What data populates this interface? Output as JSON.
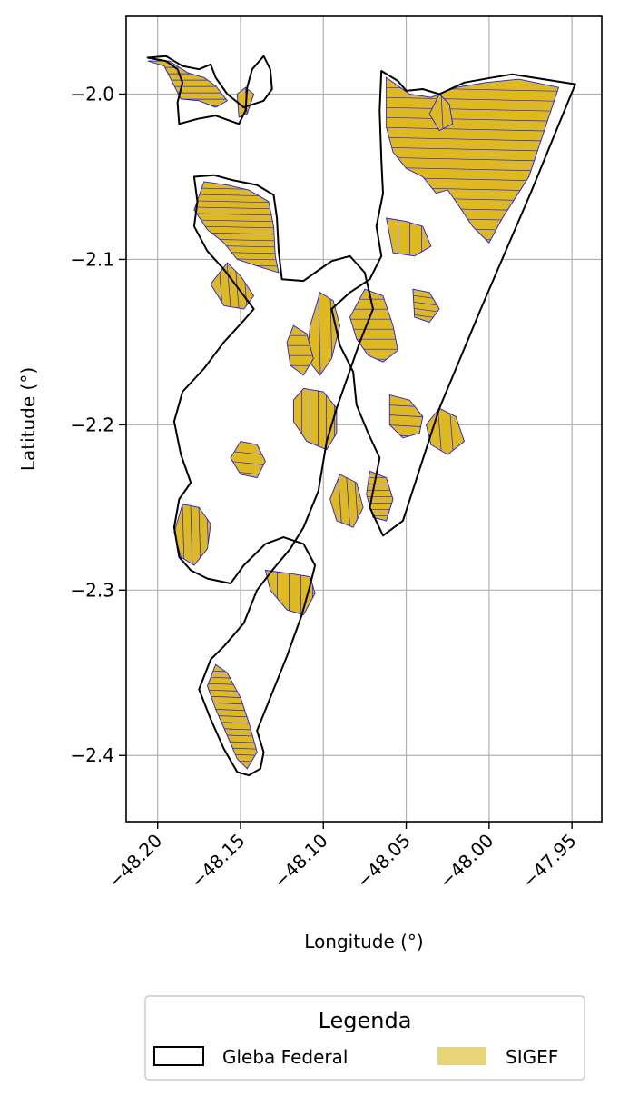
{
  "chart_data": {
    "type": "map",
    "title": "",
    "xlabel": "Longitude (°)",
    "ylabel": "Latitude (°)",
    "xlim": [
      -48.219,
      -47.932
    ],
    "ylim": [
      -2.44,
      -1.953
    ],
    "grid": true,
    "xticks": [
      -48.2,
      -48.15,
      -48.1,
      -48.05,
      -48.0,
      -47.95
    ],
    "xtick_labels": [
      "−48.20",
      "−48.15",
      "−48.10",
      "−48.05",
      "−48.00",
      "−47.95"
    ],
    "yticks": [
      -2.0,
      -2.1,
      -2.2,
      -2.3,
      -2.4
    ],
    "ytick_labels": [
      "−2.0",
      "−2.1",
      "−2.2",
      "−2.3",
      "−2.4"
    ],
    "legend": {
      "title": "Legenda",
      "placement": "bottom-center",
      "entries": [
        {
          "label": "Gleba Federal",
          "style": "outline",
          "edge_color": "#000000",
          "fill_color": "#ffffff"
        },
        {
          "label": "SIGEF",
          "style": "filled",
          "fill_color": "#e8d478"
        }
      ]
    },
    "colors": {
      "sigef_fill": "#dfb920",
      "sigef_edge": "#1a1aff",
      "gleba_edge": "#000000",
      "grid": "#b0b0b0"
    },
    "gleba_federal": [
      [
        [
          -48.206,
          -1.978
        ],
        [
          -48.195,
          -1.98
        ],
        [
          -48.188,
          -1.985
        ],
        [
          -48.185,
          -1.993
        ],
        [
          -48.188,
          -2.005
        ],
        [
          -48.187,
          -2.018
        ],
        [
          -48.176,
          -2.015
        ],
        [
          -48.165,
          -2.013
        ],
        [
          -48.151,
          -2.018
        ],
        [
          -48.147,
          -2.01
        ],
        [
          -48.146,
          -1.996
        ],
        [
          -48.143,
          -1.985
        ],
        [
          -48.136,
          -1.977
        ],
        [
          -48.132,
          -1.985
        ],
        [
          -48.131,
          -1.997
        ],
        [
          -48.136,
          -2.004
        ],
        [
          -48.148,
          -2.008
        ],
        [
          -48.158,
          -2.0
        ],
        [
          -48.165,
          -1.99
        ],
        [
          -48.168,
          -1.982
        ],
        [
          -48.175,
          -1.985
        ],
        [
          -48.185,
          -1.983
        ],
        [
          -48.195,
          -1.977
        ]
      ],
      [
        [
          -48.065,
          -1.986
        ],
        [
          -48.055,
          -1.992
        ],
        [
          -48.05,
          -1.998
        ],
        [
          -48.04,
          -1.997
        ],
        [
          -48.03,
          -2.0
        ],
        [
          -48.015,
          -1.993
        ],
        [
          -47.998,
          -1.99
        ],
        [
          -47.986,
          -1.988
        ],
        [
          -47.948,
          -1.994
        ],
        [
          -47.975,
          -2.06
        ],
        [
          -48.005,
          -2.13
        ],
        [
          -48.03,
          -2.19
        ],
        [
          -48.052,
          -2.258
        ],
        [
          -48.064,
          -2.267
        ],
        [
          -48.072,
          -2.25
        ],
        [
          -48.066,
          -2.22
        ],
        [
          -48.073,
          -2.205
        ],
        [
          -48.08,
          -2.188
        ],
        [
          -48.082,
          -2.168
        ],
        [
          -48.09,
          -2.152
        ],
        [
          -48.095,
          -2.13
        ],
        [
          -48.084,
          -2.12
        ],
        [
          -48.072,
          -2.112
        ],
        [
          -48.065,
          -2.098
        ],
        [
          -48.068,
          -2.08
        ],
        [
          -48.064,
          -2.06
        ],
        [
          -48.065,
          -2.04
        ],
        [
          -48.066,
          -2.01
        ]
      ],
      [
        [
          -48.178,
          -2.05
        ],
        [
          -48.166,
          -2.049
        ],
        [
          -48.155,
          -2.052
        ],
        [
          -48.14,
          -2.055
        ],
        [
          -48.13,
          -2.061
        ],
        [
          -48.128,
          -2.075
        ],
        [
          -48.127,
          -2.095
        ],
        [
          -48.125,
          -2.112
        ],
        [
          -48.112,
          -2.113
        ],
        [
          -48.105,
          -2.108
        ],
        [
          -48.095,
          -2.101
        ],
        [
          -48.084,
          -2.098
        ],
        [
          -48.075,
          -2.108
        ],
        [
          -48.07,
          -2.13
        ],
        [
          -48.078,
          -2.15
        ],
        [
          -48.085,
          -2.17
        ],
        [
          -48.092,
          -2.19
        ],
        [
          -48.098,
          -2.21
        ],
        [
          -48.103,
          -2.24
        ],
        [
          -48.112,
          -2.262
        ],
        [
          -48.12,
          -2.275
        ],
        [
          -48.13,
          -2.287
        ],
        [
          -48.14,
          -2.3
        ],
        [
          -48.148,
          -2.32
        ],
        [
          -48.16,
          -2.334
        ],
        [
          -48.168,
          -2.342
        ],
        [
          -48.175,
          -2.36
        ],
        [
          -48.168,
          -2.378
        ],
        [
          -48.16,
          -2.396
        ],
        [
          -48.152,
          -2.41
        ],
        [
          -48.145,
          -2.412
        ],
        [
          -48.138,
          -2.408
        ],
        [
          -48.136,
          -2.398
        ],
        [
          -48.14,
          -2.385
        ],
        [
          -48.122,
          -2.34
        ],
        [
          -48.113,
          -2.315
        ],
        [
          -48.108,
          -2.297
        ],
        [
          -48.105,
          -2.285
        ],
        [
          -48.112,
          -2.272
        ],
        [
          -48.124,
          -2.268
        ],
        [
          -48.135,
          -2.272
        ],
        [
          -48.148,
          -2.285
        ],
        [
          -48.156,
          -2.296
        ],
        [
          -48.17,
          -2.293
        ],
        [
          -48.18,
          -2.288
        ],
        [
          -48.187,
          -2.28
        ],
        [
          -48.19,
          -2.262
        ],
        [
          -48.187,
          -2.245
        ],
        [
          -48.18,
          -2.235
        ],
        [
          -48.186,
          -2.218
        ],
        [
          -48.19,
          -2.198
        ],
        [
          -48.185,
          -2.18
        ],
        [
          -48.172,
          -2.166
        ],
        [
          -48.16,
          -2.15
        ],
        [
          -48.149,
          -2.138
        ],
        [
          -48.142,
          -2.13
        ],
        [
          -48.151,
          -2.118
        ],
        [
          -48.16,
          -2.106
        ],
        [
          -48.17,
          -2.095
        ],
        [
          -48.178,
          -2.08
        ],
        [
          -48.176,
          -2.065
        ]
      ]
    ],
    "sigef": [
      [
        [
          -48.206,
          -1.98
        ],
        [
          -48.196,
          -1.983
        ],
        [
          -48.191,
          -1.993
        ],
        [
          -48.186,
          -2.003
        ],
        [
          -48.175,
          -2.004
        ],
        [
          -48.165,
          -2.008
        ],
        [
          -48.158,
          -2.004
        ],
        [
          -48.165,
          -1.995
        ],
        [
          -48.172,
          -1.99
        ],
        [
          -48.182,
          -1.987
        ],
        [
          -48.193,
          -1.98
        ]
      ],
      [
        [
          -48.152,
          -2.0
        ],
        [
          -48.147,
          -1.996
        ],
        [
          -48.142,
          -2.0
        ],
        [
          -48.146,
          -2.012
        ],
        [
          -48.151,
          -2.014
        ]
      ],
      [
        [
          -48.062,
          -1.99
        ],
        [
          -48.048,
          -2.0
        ],
        [
          -48.035,
          -2.002
        ],
        [
          -48.02,
          -1.996
        ],
        [
          -48.002,
          -1.993
        ],
        [
          -47.982,
          -1.991
        ],
        [
          -47.958,
          -1.996
        ],
        [
          -47.976,
          -2.05
        ],
        [
          -47.992,
          -2.075
        ],
        [
          -48.0,
          -2.09
        ],
        [
          -48.01,
          -2.08
        ],
        [
          -48.018,
          -2.068
        ],
        [
          -48.025,
          -2.058
        ],
        [
          -48.032,
          -2.06
        ],
        [
          -48.04,
          -2.05
        ],
        [
          -48.05,
          -2.045
        ],
        [
          -48.058,
          -2.035
        ],
        [
          -48.062,
          -2.02
        ]
      ],
      [
        [
          -48.062,
          -2.075
        ],
        [
          -48.05,
          -2.077
        ],
        [
          -48.04,
          -2.08
        ],
        [
          -48.035,
          -2.092
        ],
        [
          -48.045,
          -2.098
        ],
        [
          -48.058,
          -2.096
        ]
      ],
      [
        [
          -48.172,
          -2.053
        ],
        [
          -48.158,
          -2.055
        ],
        [
          -48.145,
          -2.058
        ],
        [
          -48.133,
          -2.065
        ],
        [
          -48.13,
          -2.08
        ],
        [
          -48.129,
          -2.098
        ],
        [
          -48.127,
          -2.108
        ],
        [
          -48.14,
          -2.104
        ],
        [
          -48.152,
          -2.1
        ],
        [
          -48.16,
          -2.09
        ],
        [
          -48.17,
          -2.082
        ],
        [
          -48.178,
          -2.07
        ]
      ],
      [
        [
          -48.158,
          -2.102
        ],
        [
          -48.15,
          -2.11
        ],
        [
          -48.142,
          -2.122
        ],
        [
          -48.148,
          -2.13
        ],
        [
          -48.16,
          -2.128
        ],
        [
          -48.168,
          -2.115
        ]
      ],
      [
        [
          -48.075,
          -2.118
        ],
        [
          -48.064,
          -2.122
        ],
        [
          -48.058,
          -2.14
        ],
        [
          -48.055,
          -2.155
        ],
        [
          -48.064,
          -2.162
        ],
        [
          -48.073,
          -2.158
        ],
        [
          -48.08,
          -2.148
        ],
        [
          -48.084,
          -2.135
        ]
      ],
      [
        [
          -48.102,
          -2.12
        ],
        [
          -48.094,
          -2.125
        ],
        [
          -48.09,
          -2.14
        ],
        [
          -48.095,
          -2.16
        ],
        [
          -48.102,
          -2.17
        ],
        [
          -48.11,
          -2.16
        ],
        [
          -48.108,
          -2.14
        ]
      ],
      [
        [
          -48.046,
          -2.118
        ],
        [
          -48.036,
          -2.12
        ],
        [
          -48.03,
          -2.13
        ],
        [
          -48.036,
          -2.138
        ],
        [
          -48.045,
          -2.135
        ]
      ],
      [
        [
          -48.112,
          -2.178
        ],
        [
          -48.1,
          -2.18
        ],
        [
          -48.092,
          -2.19
        ],
        [
          -48.092,
          -2.205
        ],
        [
          -48.098,
          -2.215
        ],
        [
          -48.11,
          -2.21
        ],
        [
          -48.118,
          -2.198
        ],
        [
          -48.118,
          -2.185
        ]
      ],
      [
        [
          -48.06,
          -2.182
        ],
        [
          -48.048,
          -2.185
        ],
        [
          -48.04,
          -2.195
        ],
        [
          -48.042,
          -2.205
        ],
        [
          -48.052,
          -2.208
        ],
        [
          -48.06,
          -2.2
        ]
      ],
      [
        [
          -48.03,
          -2.19
        ],
        [
          -48.02,
          -2.195
        ],
        [
          -48.015,
          -2.21
        ],
        [
          -48.025,
          -2.218
        ],
        [
          -48.035,
          -2.212
        ],
        [
          -48.038,
          -2.2
        ]
      ],
      [
        [
          -48.072,
          -2.228
        ],
        [
          -48.062,
          -2.232
        ],
        [
          -48.058,
          -2.245
        ],
        [
          -48.062,
          -2.258
        ],
        [
          -48.07,
          -2.256
        ],
        [
          -48.074,
          -2.242
        ]
      ],
      [
        [
          -48.185,
          -2.248
        ],
        [
          -48.175,
          -2.25
        ],
        [
          -48.168,
          -2.26
        ],
        [
          -48.17,
          -2.275
        ],
        [
          -48.178,
          -2.285
        ],
        [
          -48.186,
          -2.28
        ],
        [
          -48.19,
          -2.265
        ]
      ],
      [
        [
          -48.15,
          -2.21
        ],
        [
          -48.14,
          -2.212
        ],
        [
          -48.135,
          -2.222
        ],
        [
          -48.14,
          -2.232
        ],
        [
          -48.15,
          -2.23
        ],
        [
          -48.156,
          -2.22
        ]
      ],
      [
        [
          -48.135,
          -2.288
        ],
        [
          -48.12,
          -2.29
        ],
        [
          -48.108,
          -2.292
        ],
        [
          -48.105,
          -2.302
        ],
        [
          -48.112,
          -2.315
        ],
        [
          -48.122,
          -2.312
        ],
        [
          -48.132,
          -2.3
        ]
      ],
      [
        [
          -48.165,
          -2.345
        ],
        [
          -48.158,
          -2.35
        ],
        [
          -48.15,
          -2.365
        ],
        [
          -48.145,
          -2.38
        ],
        [
          -48.14,
          -2.398
        ],
        [
          -48.146,
          -2.408
        ],
        [
          -48.152,
          -2.402
        ],
        [
          -48.158,
          -2.388
        ],
        [
          -48.165,
          -2.372
        ],
        [
          -48.17,
          -2.358
        ]
      ],
      [
        [
          -48.09,
          -2.23
        ],
        [
          -48.08,
          -2.235
        ],
        [
          -48.076,
          -2.25
        ],
        [
          -48.082,
          -2.262
        ],
        [
          -48.092,
          -2.258
        ],
        [
          -48.096,
          -2.245
        ]
      ],
      [
        [
          -48.118,
          -2.14
        ],
        [
          -48.11,
          -2.145
        ],
        [
          -48.106,
          -2.16
        ],
        [
          -48.112,
          -2.17
        ],
        [
          -48.12,
          -2.164
        ],
        [
          -48.122,
          -2.15
        ]
      ],
      [
        [
          -48.03,
          -2.0
        ],
        [
          -48.024,
          -2.006
        ],
        [
          -48.022,
          -2.018
        ],
        [
          -48.03,
          -2.022
        ],
        [
          -48.036,
          -2.012
        ]
      ]
    ]
  }
}
